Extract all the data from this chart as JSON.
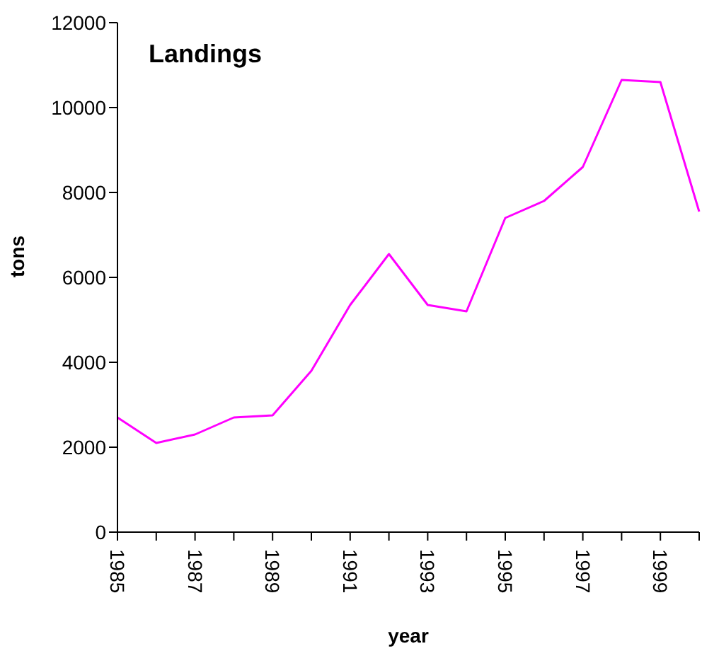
{
  "chart_data": {
    "type": "line",
    "title": "Landings",
    "xlabel": "year",
    "ylabel": "tons",
    "categories": [
      "1985",
      null,
      "1987",
      null,
      "1989",
      null,
      "1991",
      null,
      "1993",
      null,
      "1995",
      null,
      "1997",
      null,
      "1999",
      null
    ],
    "series": [
      {
        "color": "#ff00ff",
        "values": [
          2700,
          2100,
          2300,
          2700,
          2750,
          3800,
          5350,
          6550,
          5350,
          5200,
          7400,
          7800,
          8600,
          10650,
          10600,
          7550
        ]
      }
    ],
    "ylim": [
      0,
      12000
    ],
    "yticks": [
      0,
      2000,
      4000,
      6000,
      8000,
      10000,
      12000
    ],
    "grid": false,
    "legend": false,
    "marker": "none",
    "line_style": "solid"
  }
}
